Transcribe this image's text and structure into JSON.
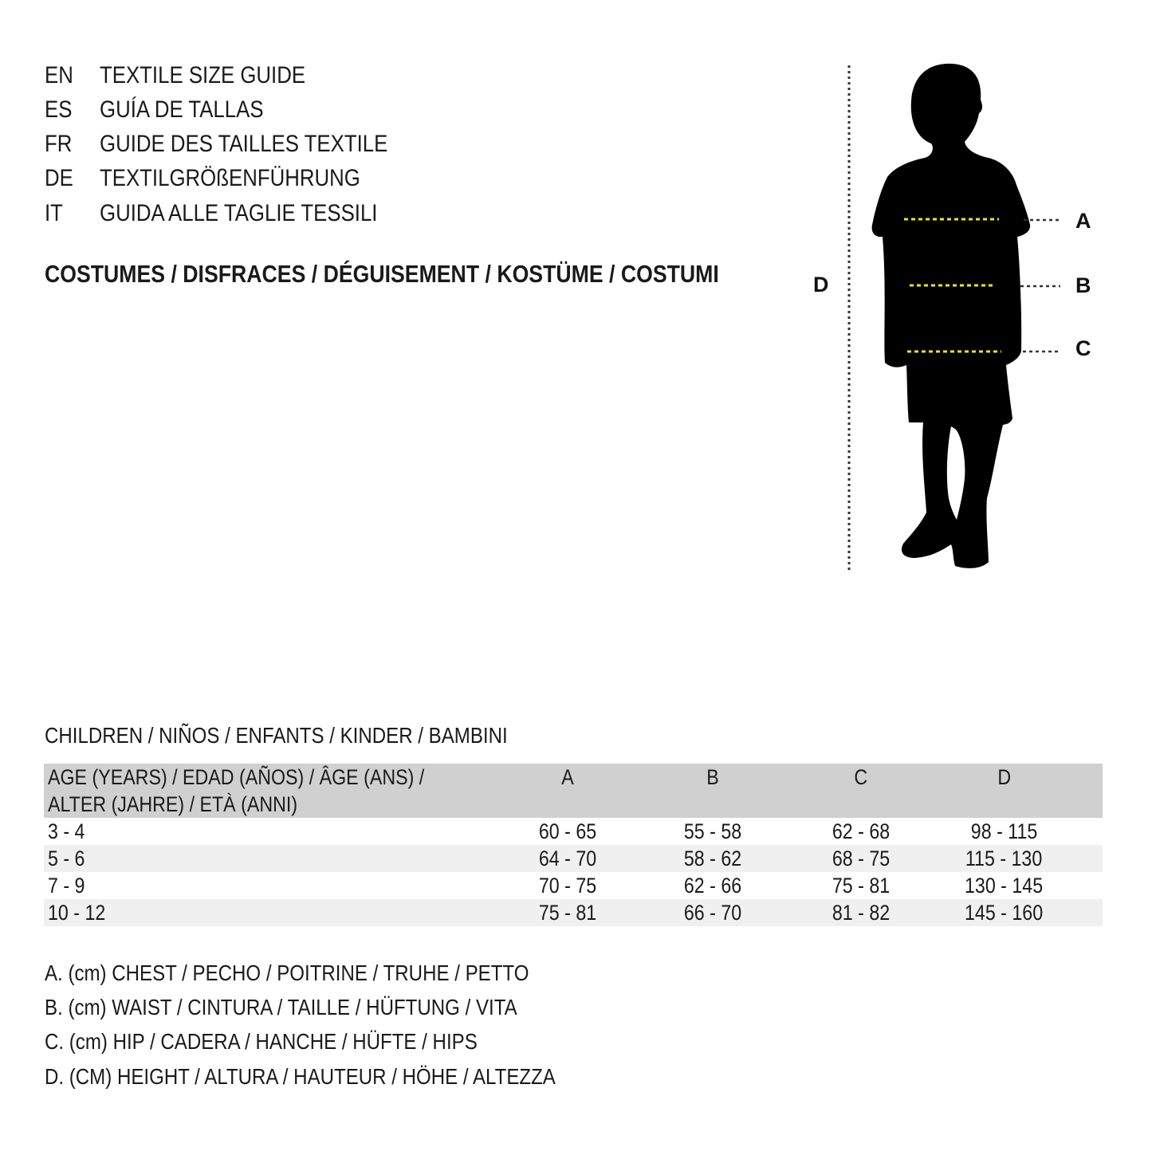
{
  "languages": [
    {
      "code": "EN",
      "text": "TEXTILE SIZE GUIDE"
    },
    {
      "code": "ES",
      "text": "GUÍA DE TALLAS"
    },
    {
      "code": "FR",
      "text": "GUIDE DES TAILLES TEXTILE"
    },
    {
      "code": "DE",
      "text": "TEXTILGRÖßENFÜHRUNG"
    },
    {
      "code": "IT",
      "text": "GUIDA ALLE TAGLIE TESSILI"
    }
  ],
  "category_title": "COSTUMES / DISFRACES / DÉGUISEMENT / KOSTÜME / COSTUMI",
  "figure": {
    "labels": {
      "A": "A",
      "B": "B",
      "C": "C",
      "D": "D"
    },
    "colors": {
      "silhouette": "#000000",
      "measure_lines": "#f2e21b",
      "guide_lines": "#333333"
    }
  },
  "table": {
    "title": "CHILDREN / NIÑOS / ENFANTS / KINDER / BAMBINI",
    "header": {
      "age_line1": "AGE (YEARS) / EDAD (AÑOS) / ÂGE (ANS) /",
      "age_line2": "ALTER (JAHRE) / ETÀ (ANNI)",
      "cols": [
        "A",
        "B",
        "C",
        "D"
      ]
    },
    "rows": [
      [
        "3 - 4",
        "60 - 65",
        "55 - 58",
        "62 - 68",
        "98 - 115"
      ],
      [
        "5 - 6",
        "64 - 70",
        "58 - 62",
        "68 - 75",
        "115 - 130"
      ],
      [
        "7 - 9",
        "70 - 75",
        "62 - 66",
        "75 - 81",
        "130 - 145"
      ],
      [
        "10 - 12",
        "75 - 81",
        "66 - 70",
        "81 - 82",
        "145 - 160"
      ]
    ]
  },
  "legend": [
    "A. (cm) CHEST / PECHO / POITRINE / TRUHE / PETTO",
    "B. (cm) WAIST / CINTURA / TAILLE / HÜFTUNG / VITA",
    "C. (cm) HIP / CADERA / HANCHE / HÜFTE / HIPS",
    "D. (CM) HEIGHT / ALTURA / HAUTEUR / HÖHE / ALTEZZA"
  ]
}
